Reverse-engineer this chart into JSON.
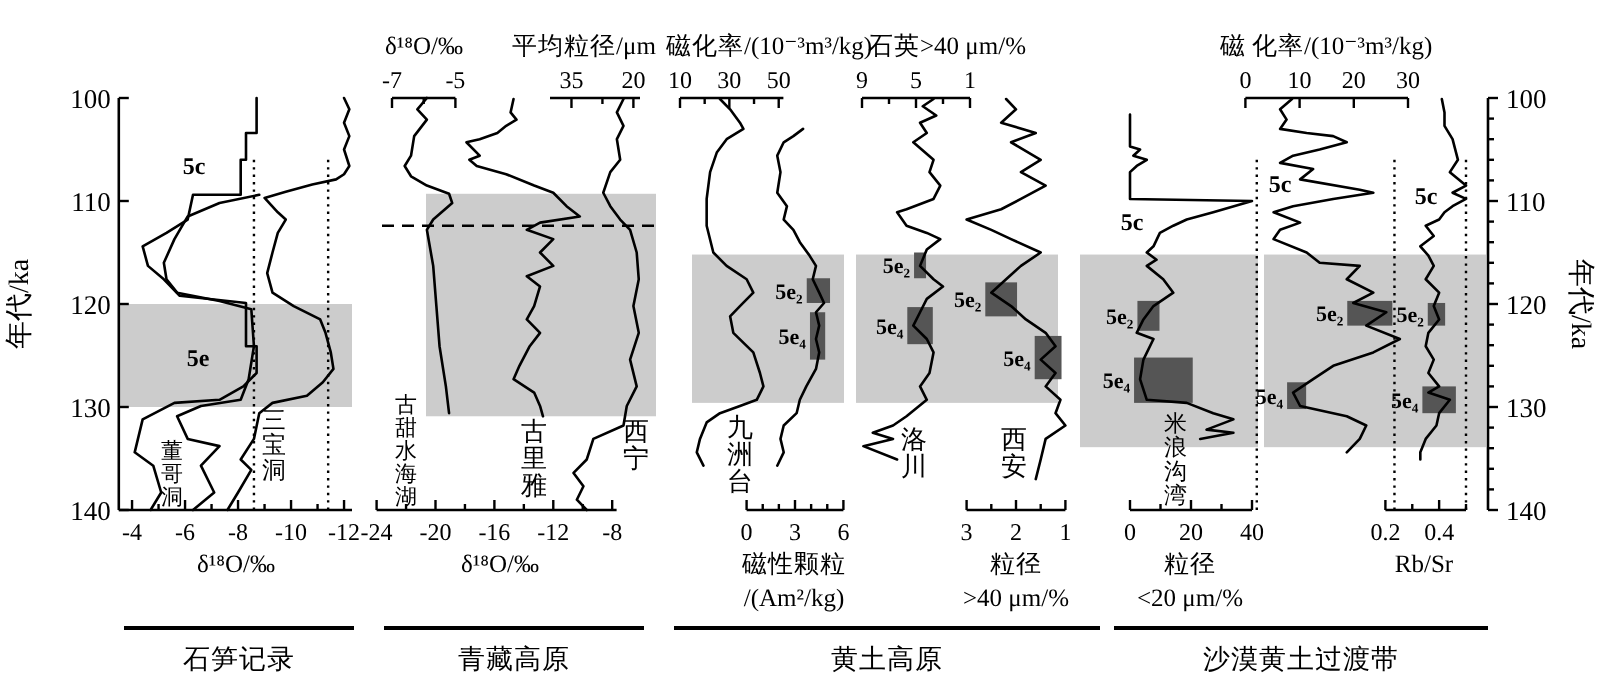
{
  "chart_data": [
    {
      "type": "line",
      "title": "石笋记录",
      "xlabel": "δ¹⁸O/‰",
      "ylabel": "年代/ka",
      "xlim": [
        -3.5,
        -12.3
      ],
      "xticks": [
        -4,
        {
          "value": -5,
          "label": null
        },
        -6,
        {
          "value": -7,
          "label": null
        },
        -8,
        {
          "value": -9,
          "label": null
        },
        -10,
        {
          "value": -11,
          "label": null
        },
        -12
      ],
      "ylim": [
        140,
        100
      ],
      "yticks": [
        100,
        110,
        120,
        130,
        140
      ],
      "series": [
        {
          "color": "#000000",
          "x": [
            -8.7,
            -8.7,
            -8.3,
            -8.3,
            -8.1,
            -8.1,
            -6.3,
            -6.1,
            -5.3,
            -4.4,
            -4.6,
            -5.2,
            -5.8,
            -8.3,
            -8.3,
            -8.7,
            -8.7,
            -8.2,
            -7.3,
            -5.6,
            -4.4,
            -4.1,
            -4.8,
            -5.1,
            -4.7
          ],
          "values": [
            100,
            103.4,
            103.4,
            106.0,
            106.0,
            109.4,
            109.4,
            111.8,
            113.1,
            114.4,
            116.3,
            117.6,
            119.2,
            119.9,
            124.1,
            124.1,
            126.7,
            128.0,
            129.3,
            129.6,
            131.2,
            134.4,
            135.7,
            138.3,
            140
          ]
        },
        {
          "color": "#000000",
          "x": [
            -8.8,
            -7.3,
            -6.1,
            -5.6,
            -5.2,
            -5.3,
            -5.7,
            -7.3,
            -8.5,
            -8.6,
            -8.4,
            -8.1,
            -6.6,
            -5.7,
            -6.1,
            -7.3,
            -6.6,
            -7.1,
            -6.3
          ],
          "values": [
            109.4,
            110.2,
            111.5,
            113.7,
            116.0,
            117.6,
            118.9,
            119.7,
            120.5,
            124.1,
            127.3,
            129.3,
            129.9,
            130.9,
            133.1,
            133.8,
            135.7,
            138.3,
            140
          ]
        },
        {
          "color": "#000000",
          "x": [
            -12.0,
            -12.2,
            -12.0,
            -12.2,
            -12.0,
            -12.2,
            -12.0,
            -11.7,
            -10.8,
            -9.8,
            -9.0,
            -9.5,
            -9.8,
            -9.5,
            -9.3,
            -9.1,
            -9.3,
            -10.1,
            -11.1,
            -11.3,
            -11.5,
            -11.6,
            -11.2,
            -10.6,
            -9.3,
            -8.8,
            -8.6,
            -8.1,
            -8.5,
            -8.0,
            -7.6
          ],
          "values": [
            100,
            101.1,
            102.4,
            103.7,
            105.0,
            106.6,
            107.4,
            107.9,
            108.4,
            109.1,
            109.7,
            111.1,
            111.8,
            113.1,
            115.0,
            117.0,
            118.9,
            120.2,
            121.5,
            122.8,
            124.7,
            126.3,
            127.6,
            128.9,
            129.6,
            130.6,
            133.1,
            135.1,
            136.1,
            138.3,
            140
          ]
        }
      ],
      "bands": [
        {
          "axis": "y",
          "from": 120,
          "to": 130,
          "label": null,
          "color": "#cccccc"
        }
      ],
      "ref_lines": [
        {
          "axis": "x",
          "value": -8.6,
          "label": null,
          "line_style": "dotted",
          "color": "#000000"
        },
        {
          "axis": "x",
          "value": -11.4,
          "label": null,
          "line_style": "dotted",
          "color": "#000000"
        }
      ],
      "annotations": [
        "5c",
        "5e",
        "董哥洞",
        "三宝洞"
      ]
    },
    {
      "type": "line",
      "xlabel": "δ¹⁸O/‰",
      "xlim": [
        -7,
        -5
      ],
      "xticks": [
        -7,
        {
          "value": -6,
          "label": null
        },
        -5
      ],
      "ylim": [
        140,
        100
      ],
      "tick_labels": "x",
      "series": [
        {
          "color": "#000000",
          "x": [
            -5.9,
            -6.2,
            -5.9,
            -6.3,
            -6.4,
            -6.6,
            -6.4,
            -5.9,
            -5.2,
            -5.1,
            -5.7,
            -5.9,
            -5.7,
            -5.6,
            -5.5,
            -5.3,
            -5.2
          ],
          "values": [
            100,
            101.1,
            102.1,
            103.7,
            105.6,
            106.6,
            107.6,
            108.5,
            109.3,
            110.2,
            111.8,
            112.8,
            116.3,
            120.2,
            124.1,
            128.0,
            130.6
          ]
        }
      ],
      "bands": [
        {
          "axis": "y",
          "from": 109.3,
          "to": 130.9,
          "label": null,
          "color": "#cccccc"
        }
      ],
      "ref_lines": [
        {
          "axis": "y",
          "value": 112.4,
          "label": null,
          "line_style": "dashed",
          "color": "#000000"
        }
      ],
      "annotations": [
        "古甜水海湖"
      ]
    },
    {
      "type": "line",
      "title": "青藏高原",
      "xlabel": "δ¹⁸O/‰",
      "xlim": [
        -24,
        -7.7
      ],
      "xticks": [
        -24,
        {
          "value": -22,
          "label": null
        },
        -20,
        {
          "value": -18,
          "label": null
        },
        -16,
        {
          "value": -14,
          "label": null
        },
        -12,
        {
          "value": -10,
          "label": null
        },
        -8
      ],
      "ylim": [
        140,
        100
      ],
      "tick_labels": "x",
      "series": [
        {
          "color": "#000000",
          "x": [
            -14.7,
            -14.9,
            -14.5,
            -15.2,
            -15.8,
            -17.0,
            -17.9,
            -17.0,
            -17.7,
            -17.2,
            -15.2,
            -13.3,
            -12.0,
            -11.1,
            -10.2,
            -12.9,
            -13.8,
            -12.0,
            -12.9,
            -12.0,
            -13.8,
            -12.9,
            -13.3,
            -13.8,
            -12.9,
            -13.6,
            -14.3,
            -14.7,
            -13.3,
            -12.9,
            -12.7
          ],
          "values": [
            100.1,
            101.4,
            102.1,
            102.7,
            103.4,
            104.0,
            104.3,
            105.6,
            106.0,
            106.6,
            107.4,
            108.5,
            109.2,
            110.5,
            111.5,
            112.1,
            112.8,
            113.7,
            115.0,
            116.3,
            117.3,
            118.3,
            120.2,
            121.5,
            122.8,
            124.1,
            126.0,
            127.3,
            128.6,
            129.9,
            130.9
          ]
        }
      ],
      "annotations": [
        "古里雅"
      ]
    },
    {
      "type": "line",
      "xlabel": "平均粒径/μm",
      "xlim": [
        40.2,
        18.4
      ],
      "xticks": [
        35,
        {
          "value": 27.5,
          "label": null
        },
        20
      ],
      "ylim": [
        140,
        100
      ],
      "tick_labels": "x",
      "series": [
        {
          "color": "#000000",
          "x": [
            22.4,
            24.0,
            22.4,
            24.0,
            23.2,
            25.6,
            27.3,
            25.6,
            23.2,
            20.8,
            19.2,
            18.7,
            20.0,
            18.7,
            20.8,
            19.2,
            21.6,
            22.4,
            29.7,
            31.3,
            34.5,
            32.1,
            33.7,
            31.3
          ],
          "values": [
            100.1,
            101.4,
            102.7,
            104.0,
            106.0,
            107.2,
            109.2,
            110.5,
            111.8,
            112.8,
            115.0,
            117.6,
            120.2,
            122.8,
            125.4,
            128.0,
            129.9,
            131.8,
            133.1,
            135.1,
            136.4,
            137.7,
            139.0,
            140
          ]
        }
      ],
      "annotations": [
        "西宁"
      ]
    },
    {
      "type": "line",
      "xlabel": "磁化率/(10⁻³m³/kg)",
      "xlim": [
        10,
        51.9
      ],
      "xticks": [
        10,
        {
          "value": 20,
          "label": null
        },
        30,
        {
          "value": 40,
          "label": null
        },
        50
      ],
      "ylim": [
        140,
        100
      ],
      "tick_labels": "x",
      "series": [
        {
          "color": "#000000",
          "x": [
            26.2,
            30.3,
            34.3,
            35.7,
            28.9,
            24.9,
            22.2,
            20.8,
            20.8,
            23.5,
            28.9,
            37.0,
            39.7,
            34.3,
            30.3,
            31.6,
            39.7,
            42.4,
            43.8,
            41.1,
            34.3,
            26.2,
            20.8,
            18.1,
            16.8,
            19.5
          ],
          "values": [
            100.1,
            101.1,
            102.4,
            103.0,
            104.0,
            105.3,
            107.2,
            109.8,
            112.4,
            115.0,
            116.3,
            117.6,
            118.9,
            120.2,
            121.2,
            122.8,
            124.7,
            126.7,
            128.0,
            129.3,
            129.9,
            130.6,
            131.5,
            133.1,
            134.4,
            135.7
          ]
        }
      ],
      "bands": [
        {
          "axis": "y",
          "from": 115.2,
          "to": 129.6,
          "label": null,
          "color": "#cccccc"
        }
      ],
      "annotations": [
        "九洲台"
      ]
    },
    {
      "type": "line",
      "xlabel": "磁性颗粒\n/(Am²/kg)",
      "xlim": [
        0,
        6
      ],
      "xticks": [
        0,
        {
          "value": 1,
          "label": null
        },
        {
          "value": 2,
          "label": null
        },
        3,
        {
          "value": 4,
          "label": null
        },
        {
          "value": 5,
          "label": null
        },
        6
      ],
      "ylim": [
        140,
        100
      ],
      "tick_labels": "x",
      "series": [
        {
          "color": "#000000",
          "x": [
            3.5,
            2.9,
            2.3,
            1.9,
            2.1,
            1.9,
            2.5,
            2.3,
            2.9,
            3.3,
            3.9,
            4.3,
            4.1,
            4.5,
            4.8,
            4.3,
            4.5,
            4.3,
            4.5,
            4.3,
            3.7,
            3.3,
            3.1,
            2.3,
            2.1,
            2.3,
            1.9
          ],
          "values": [
            103.0,
            103.7,
            104.3,
            105.6,
            107.2,
            109.2,
            110.5,
            111.8,
            112.8,
            114.0,
            115.3,
            116.3,
            117.6,
            118.9,
            119.9,
            120.8,
            122.1,
            123.4,
            124.7,
            126.3,
            128.0,
            129.3,
            130.6,
            131.8,
            133.1,
            134.4,
            135.7
          ]
        }
      ],
      "bands": [
        {
          "axis": "y",
          "from": 117.5,
          "to": 119.9,
          "label": "5e₂",
          "color": "#555555"
        },
        {
          "axis": "y",
          "from": 120.8,
          "to": 125.4,
          "label": "5e₄",
          "color": "#555555"
        }
      ]
    },
    {
      "type": "line",
      "title": "黄土高原",
      "xlabel": "石英>40 μm/%",
      "xlim": [
        9,
        1
      ],
      "xticks": [
        9,
        {
          "value": 7,
          "label": null
        },
        5,
        {
          "value": 3,
          "label": null
        },
        1
      ],
      "ylim": [
        140,
        100
      ],
      "tick_labels": "x",
      "series": [
        {
          "color": "#000000",
          "x": [
            3.7,
            4.5,
            3.5,
            4.7,
            4.2,
            5.2,
            3.7,
            4.0,
            3.2,
            3.7,
            5.7,
            6.4,
            5.7,
            4.2,
            3.2,
            4.2,
            4.7,
            3.7,
            3.0,
            4.2,
            4.7,
            5.2,
            4.2,
            3.7,
            4.0,
            4.7,
            4.2,
            5.7,
            6.7,
            8.2,
            6.7,
            8.9,
            6.4
          ],
          "values": [
            100.1,
            100.8,
            101.7,
            102.4,
            103.4,
            104.3,
            106.0,
            107.2,
            108.5,
            109.8,
            110.8,
            111.1,
            112.4,
            113.1,
            113.7,
            114.7,
            116.3,
            117.6,
            118.3,
            119.5,
            120.8,
            122.1,
            123.4,
            124.7,
            126.7,
            128.0,
            129.3,
            130.9,
            131.8,
            132.5,
            133.1,
            133.8,
            135.1
          ]
        }
      ],
      "bands": [
        {
          "axis": "y",
          "from": 115.2,
          "to": 129.6,
          "label": null,
          "color": "#cccccc"
        },
        {
          "axis": "y",
          "from": 115.0,
          "to": 117.5,
          "label": "5e₂",
          "color": "#555555"
        },
        {
          "axis": "y",
          "from": 120.3,
          "to": 123.9,
          "label": "5e₄",
          "color": "#555555"
        }
      ],
      "annotations": [
        "洛川"
      ]
    },
    {
      "type": "line",
      "xlabel": "粒径\n>40 μm/%",
      "xlim": [
        3,
        1
      ],
      "xticks": [
        3,
        {
          "value": 2.5,
          "label": null
        },
        2,
        {
          "value": 1.5,
          "label": null
        },
        1
      ],
      "ylim": [
        140,
        100
      ],
      "tick_labels": "x",
      "series": [
        {
          "color": "#000000",
          "x": [
            2.2,
            2.0,
            2.3,
            1.6,
            2.1,
            1.5,
            1.9,
            1.4,
            1.9,
            2.3,
            3.0,
            2.5,
            2.1,
            1.5,
            1.9,
            2.2,
            2.5,
            2.1,
            1.8,
            1.4,
            1.2,
            1.5,
            1.2,
            1.4,
            1.1,
            1.2,
            1.0,
            1.4,
            1.5,
            1.6
          ],
          "values": [
            100.1,
            101.1,
            102.4,
            103.4,
            104.3,
            106.0,
            107.2,
            108.5,
            109.8,
            110.8,
            111.8,
            112.8,
            113.7,
            115.0,
            116.3,
            117.6,
            118.9,
            120.2,
            121.5,
            122.8,
            124.1,
            125.4,
            126.7,
            128.0,
            129.3,
            130.6,
            131.8,
            133.1,
            135.1,
            137.0
          ]
        }
      ],
      "bands": [
        {
          "axis": "y",
          "from": 117.9,
          "to": 121.2,
          "label": "5e₂",
          "color": "#555555"
        },
        {
          "axis": "y",
          "from": 123.1,
          "to": 127.3,
          "label": "5e₄",
          "color": "#555555"
        }
      ],
      "annotations": [
        "西安"
      ]
    },
    {
      "type": "line",
      "xlabel": "粒径\n<20  μm/%",
      "xlim": [
        0,
        40
      ],
      "xticks": [
        0,
        {
          "value": 10,
          "label": null
        },
        20,
        {
          "value": 30,
          "label": null
        },
        40
      ],
      "ylim": [
        140,
        100
      ],
      "tick_labels": "x",
      "series": [
        {
          "color": "#000000",
          "x": [
            0,
            0,
            3.3,
            1.1,
            5.5,
            2.2,
            0,
            0,
            40,
            27.3,
            18.6,
            14.2,
            9.8,
            7.7,
            5.5,
            8.7,
            5.5,
            10.9,
            14.2,
            7.7,
            4.4,
            2.2,
            7.7,
            4.4,
            3.3,
            5.5,
            18.6,
            27.3,
            33.9,
            25.1,
            33.9,
            23.0
          ],
          "values": [
            101.6,
            104.7,
            105.0,
            105.6,
            106.0,
            106.6,
            107.2,
            109.8,
            110.0,
            111.1,
            111.8,
            112.4,
            113.1,
            114.4,
            115.0,
            115.7,
            116.3,
            117.6,
            118.9,
            120.2,
            121.5,
            122.8,
            123.4,
            125.4,
            127.3,
            129.3,
            129.6,
            130.6,
            131.2,
            132.2,
            132.5,
            133.1
          ]
        }
      ],
      "bands": [
        {
          "axis": "y",
          "from": 115.2,
          "to": 133.9,
          "label": null,
          "color": "#cccccc"
        },
        {
          "axis": "y",
          "from": 119.7,
          "to": 122.6,
          "label": "5e₂",
          "color": "#555555"
        },
        {
          "axis": "y",
          "from": 125.2,
          "to": 129.6,
          "label": "5e₄",
          "color": "#555555"
        }
      ],
      "annotations": [
        "5c",
        "米浪沟湾"
      ]
    },
    {
      "type": "line",
      "title": "沙漠黄土过渡带",
      "xlabel": "磁 化率/(10⁻³m³/kg)",
      "xlim": [
        0,
        30
      ],
      "xticks": [
        0,
        10,
        20,
        30
      ],
      "ylim": [
        140,
        100
      ],
      "tick_labels": "x",
      "series": [
        {
          "color": "#000000",
          "x": [
            8.6,
            6.4,
            7.6,
            6.4,
            11.3,
            16.2,
            18.7,
            13.7,
            8.8,
            6.4,
            12.5,
            10.1,
            21.1,
            23.6,
            16.2,
            8.8,
            5.2,
            10.1,
            6.4,
            5.2,
            11.3,
            13.7,
            21.1,
            18.7,
            23.6,
            19.9,
            26.0,
            22.3,
            28.5,
            23.6,
            16.2,
            12.5,
            8.8,
            10.1,
            18.7,
            22.3,
            21.1,
            18.7
          ],
          "values": [
            100.1,
            101.1,
            102.1,
            103.0,
            103.4,
            103.7,
            104.3,
            105.0,
            105.6,
            106.3,
            106.9,
            107.9,
            108.9,
            109.2,
            109.8,
            110.5,
            111.1,
            112.1,
            112.8,
            113.7,
            115.0,
            116.0,
            116.3,
            117.6,
            118.9,
            119.9,
            120.8,
            122.1,
            123.4,
            124.7,
            126.0,
            127.3,
            128.6,
            129.9,
            130.9,
            131.8,
            133.1,
            134.4
          ]
        }
      ],
      "bands": [
        {
          "axis": "y",
          "from": 115.2,
          "to": 133.9,
          "label": null,
          "color": "#cccccc"
        },
        {
          "axis": "y",
          "from": 119.7,
          "to": 122.1,
          "label": "5e₂",
          "color": "#555555"
        },
        {
          "axis": "y",
          "from": 127.6,
          "to": 130.2,
          "label": "5e₄",
          "color": "#555555"
        }
      ],
      "ref_lines": [
        {
          "axis": "x",
          "value": 2.1,
          "label": null,
          "line_style": "dotted",
          "color": "#000000"
        },
        {
          "axis": "x",
          "value": 27.5,
          "label": null,
          "line_style": "dotted",
          "color": "#000000"
        }
      ],
      "annotations": [
        "5c"
      ]
    },
    {
      "type": "line",
      "xlabel": "Rb/Sr",
      "ylabel": "年代/ka",
      "xlim": [
        0.2,
        0.5
      ],
      "xticks": [
        0.2,
        {
          "value": 0.3,
          "label": null
        },
        0.4,
        {
          "value": 0.5,
          "label": null
        }
      ],
      "ylim": [
        140,
        100
      ],
      "yticks": [
        100,
        {
          "value": 102,
          "label": null
        },
        {
          "value": 104,
          "label": null
        },
        {
          "value": 106,
          "label": null
        },
        {
          "value": 108,
          "label": null
        },
        110,
        {
          "value": 112,
          "label": null
        },
        {
          "value": 114,
          "label": null
        },
        {
          "value": 116,
          "label": null
        },
        {
          "value": 118,
          "label": null
        },
        120,
        {
          "value": 122,
          "label": null
        },
        {
          "value": 124,
          "label": null
        },
        {
          "value": 126,
          "label": null
        },
        {
          "value": 128,
          "label": null
        },
        130,
        {
          "value": 132,
          "label": null
        },
        {
          "value": 134,
          "label": null
        },
        {
          "value": 136,
          "label": null
        },
        {
          "value": 138,
          "label": null
        },
        140
      ],
      "series": [
        {
          "color": "#000000",
          "x": [
            0.41,
            0.42,
            0.42,
            0.45,
            0.47,
            0.44,
            0.5,
            0.45,
            0.5,
            0.45,
            0.42,
            0.4,
            0.35,
            0.38,
            0.33,
            0.36,
            0.38,
            0.35,
            0.4,
            0.38,
            0.4,
            0.36,
            0.35,
            0.38,
            0.36,
            0.4,
            0.36,
            0.44,
            0.4,
            0.39,
            0.35,
            0.33,
            0.33
          ],
          "values": [
            100.1,
            101.4,
            102.7,
            104.0,
            106.0,
            107.2,
            108.5,
            109.2,
            109.8,
            110.5,
            111.1,
            111.8,
            112.4,
            113.4,
            114.4,
            115.3,
            116.3,
            117.6,
            118.9,
            120.2,
            121.5,
            122.8,
            124.1,
            125.4,
            126.7,
            128.0,
            128.6,
            129.3,
            130.6,
            131.8,
            133.1,
            134.4,
            135.1
          ]
        }
      ],
      "bands": [
        {
          "axis": "y",
          "from": 119.9,
          "to": 122.1,
          "label": "5e₂",
          "color": "#555555"
        },
        {
          "axis": "y",
          "from": 128.0,
          "to": 130.6,
          "label": "5e₄",
          "color": "#555555"
        }
      ],
      "ref_lines": [
        {
          "axis": "x",
          "value": 0.5,
          "label": null,
          "line_style": "dotted",
          "color": "#000000"
        }
      ],
      "annotations": [
        "5c"
      ]
    }
  ]
}
